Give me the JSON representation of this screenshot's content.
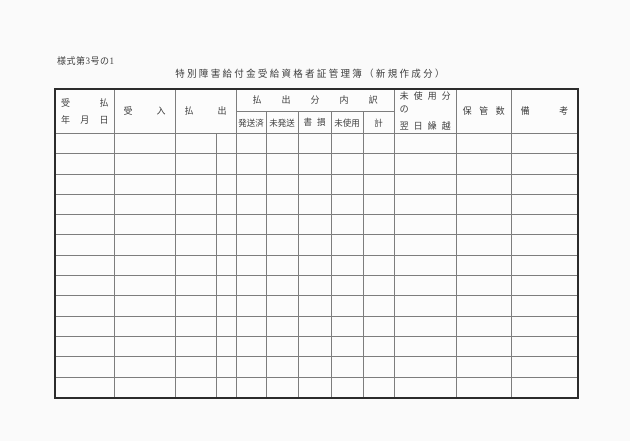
{
  "page": {
    "form_number": "様式第3号の1",
    "title": "特別障害給付金受給資格者証管理簿（新規作成分）"
  },
  "table": {
    "header": {
      "date_line1": "受 払",
      "date_line2": "年 月 日",
      "receipt": "受 入",
      "payout": "払 出",
      "payout_breakdown_group": "払 出 分 内 訳",
      "dispatched": "発送済",
      "undispatched": "未発送",
      "spoiled": "書 損",
      "unused": "未使用",
      "total": "計",
      "unused_carryover_line1": "未 使 用 分 の",
      "unused_carryover_line2": "翌 日 繰 越",
      "storage_count": "保 管 数",
      "remarks": "備 考"
    },
    "body_row_count": 13
  }
}
